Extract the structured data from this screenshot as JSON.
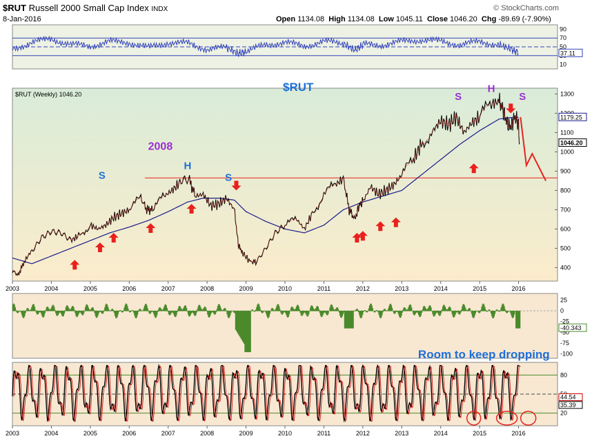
{
  "header": {
    "symbol": "$RUT",
    "name": "Russell 2000 Small Cap Index",
    "exchange": "INDX",
    "date": "8-Jan-2016",
    "open_label": "Open",
    "open": "1134.08",
    "high_label": "High",
    "high": "1134.08",
    "low_label": "Low",
    "low": "1045.11",
    "close_label": "Close",
    "close": "1046.20",
    "chg_label": "Chg",
    "chg": "-89.69 (-7.90%)",
    "brand": "© StockCharts.com"
  },
  "colors": {
    "price_line": "#000000",
    "ma_line": "#1a1a8c",
    "rsi_line": "#3344bb",
    "histogram": "#4a8a2a",
    "stoch_line": "#cc0000",
    "annotation_red": "#e8211d",
    "annotation_blue": "#1e6fd9",
    "annotation_purple": "#9b2fd0",
    "price_bg_top": "#d9ecd9",
    "price_bg_bottom": "#fbeccb"
  },
  "chart_data": [
    {
      "panel": "rsi",
      "type": "line",
      "tick_labels": [
        "90",
        "70",
        "50",
        "30",
        "10"
      ],
      "current_label": "37.11",
      "ylim": [
        0,
        100
      ],
      "x": [
        2003.0,
        2003.5,
        2004.0,
        2004.5,
        2005.0,
        2005.5,
        2006.0,
        2006.5,
        2007.0,
        2007.5,
        2008.0,
        2008.5,
        2008.8,
        2009.0,
        2009.5,
        2010.0,
        2010.5,
        2011.0,
        2011.5,
        2011.8,
        2012.0,
        2012.5,
        2013.0,
        2013.5,
        2014.0,
        2014.5,
        2015.0,
        2015.5,
        2015.8,
        2016.0
      ],
      "values": [
        45,
        60,
        68,
        55,
        52,
        62,
        60,
        48,
        60,
        58,
        45,
        48,
        35,
        38,
        55,
        60,
        52,
        62,
        58,
        42,
        55,
        55,
        62,
        66,
        62,
        55,
        62,
        55,
        45,
        37
      ]
    },
    {
      "panel": "price",
      "type": "line",
      "title": "$RUT (Weekly) 1046.20",
      "label": "$RUT",
      "y_ticks": [
        400,
        500,
        600,
        700,
        800,
        900,
        1000,
        1100,
        1200,
        1300
      ],
      "ylim": [
        330,
        1330
      ],
      "x_ticks": [
        "2003",
        "2004",
        "2005",
        "2006",
        "2007",
        "2008",
        "2009",
        "2010",
        "2011",
        "2012",
        "2013",
        "2014",
        "2015",
        "2016"
      ],
      "xlim": [
        2003.0,
        2017.0
      ],
      "price_labels": [
        "1179.25",
        "1046.20"
      ],
      "series": [
        {
          "type": "price",
          "x": [
            2003.0,
            2003.15,
            2003.3,
            2003.5,
            2003.75,
            2004.0,
            2004.25,
            2004.5,
            2004.7,
            2005.0,
            2005.2,
            2005.4,
            2005.6,
            2005.8,
            2006.0,
            2006.3,
            2006.45,
            2006.6,
            2006.9,
            2007.1,
            2007.3,
            2007.55,
            2007.7,
            2007.9,
            2008.1,
            2008.3,
            2008.5,
            2008.7,
            2008.8,
            2008.9,
            2009.1,
            2009.25,
            2009.5,
            2009.75,
            2010.0,
            2010.3,
            2010.5,
            2010.7,
            2011.0,
            2011.3,
            2011.5,
            2011.65,
            2011.8,
            2011.9,
            2012.0,
            2012.2,
            2012.4,
            2012.6,
            2012.8,
            2013.0,
            2013.3,
            2013.5,
            2013.8,
            2014.0,
            2014.2,
            2014.4,
            2014.6,
            2014.8,
            2015.0,
            2015.3,
            2015.5,
            2015.6,
            2015.7,
            2015.8,
            2015.9,
            2016.0,
            2016.02
          ],
          "values": [
            385,
            360,
            430,
            490,
            560,
            590,
            580,
            540,
            565,
            620,
            600,
            620,
            660,
            680,
            700,
            760,
            700,
            700,
            770,
            800,
            840,
            850,
            770,
            780,
            720,
            730,
            760,
            700,
            520,
            480,
            430,
            430,
            500,
            580,
            620,
            650,
            600,
            680,
            780,
            830,
            860,
            700,
            650,
            720,
            740,
            820,
            780,
            800,
            830,
            880,
            960,
            1040,
            1110,
            1160,
            1140,
            1180,
            1100,
            1150,
            1180,
            1250,
            1260,
            1220,
            1150,
            1130,
            1180,
            1150,
            1046
          ]
        },
        {
          "type": "moving_average",
          "x": [
            2003.0,
            2003.5,
            2004.0,
            2004.5,
            2005.0,
            2005.5,
            2006.0,
            2006.5,
            2007.0,
            2007.5,
            2007.9,
            2008.3,
            2008.7,
            2009.0,
            2009.5,
            2010.0,
            2010.5,
            2011.0,
            2011.5,
            2012.0,
            2012.5,
            2013.0,
            2013.5,
            2014.0,
            2014.5,
            2015.0,
            2015.5,
            2015.9,
            2016.0
          ],
          "values": [
            450,
            420,
            460,
            500,
            540,
            580,
            610,
            645,
            690,
            740,
            760,
            760,
            750,
            690,
            640,
            600,
            580,
            620,
            700,
            740,
            770,
            800,
            880,
            960,
            1040,
            1110,
            1170,
            1180,
            1179
          ]
        },
        {
          "type": "projection",
          "x": [
            2016.05,
            2016.2,
            2016.35,
            2016.7
          ],
          "values": [
            1180,
            930,
            990,
            850
          ]
        }
      ],
      "annotations": {
        "year_label": "2008",
        "pattern_labels_blue": [
          "S",
          "H",
          "S"
        ],
        "pattern_labels_purple": [
          "S",
          "H",
          "S"
        ],
        "neckline_value": 865,
        "up_arrows_x": [
          2004.6,
          2005.25,
          2005.6,
          2006.55,
          2007.6,
          2011.85,
          2012.0,
          2012.45,
          2012.85,
          2014.85
        ],
        "down_arrows_x": [
          2008.75,
          2015.8
        ]
      }
    },
    {
      "panel": "histogram",
      "type": "bar",
      "tick_labels": [
        "25",
        "0",
        "-25",
        "-50",
        "-75",
        "-100"
      ],
      "current_label": "-40.343",
      "ylim": [
        -110,
        40
      ]
    },
    {
      "panel": "stochastic",
      "type": "line",
      "tick_labels": [
        "80",
        "50",
        "20"
      ],
      "current_labels": [
        "44.54",
        "35.39"
      ],
      "ylim": [
        0,
        100
      ],
      "x_ticks": [
        "2003",
        "2004",
        "2005",
        "2006",
        "2007",
        "2008",
        "2009",
        "2010",
        "2011",
        "2012",
        "2013",
        "2014",
        "2015",
        "2016"
      ],
      "text": "Room to keep dropping"
    }
  ]
}
